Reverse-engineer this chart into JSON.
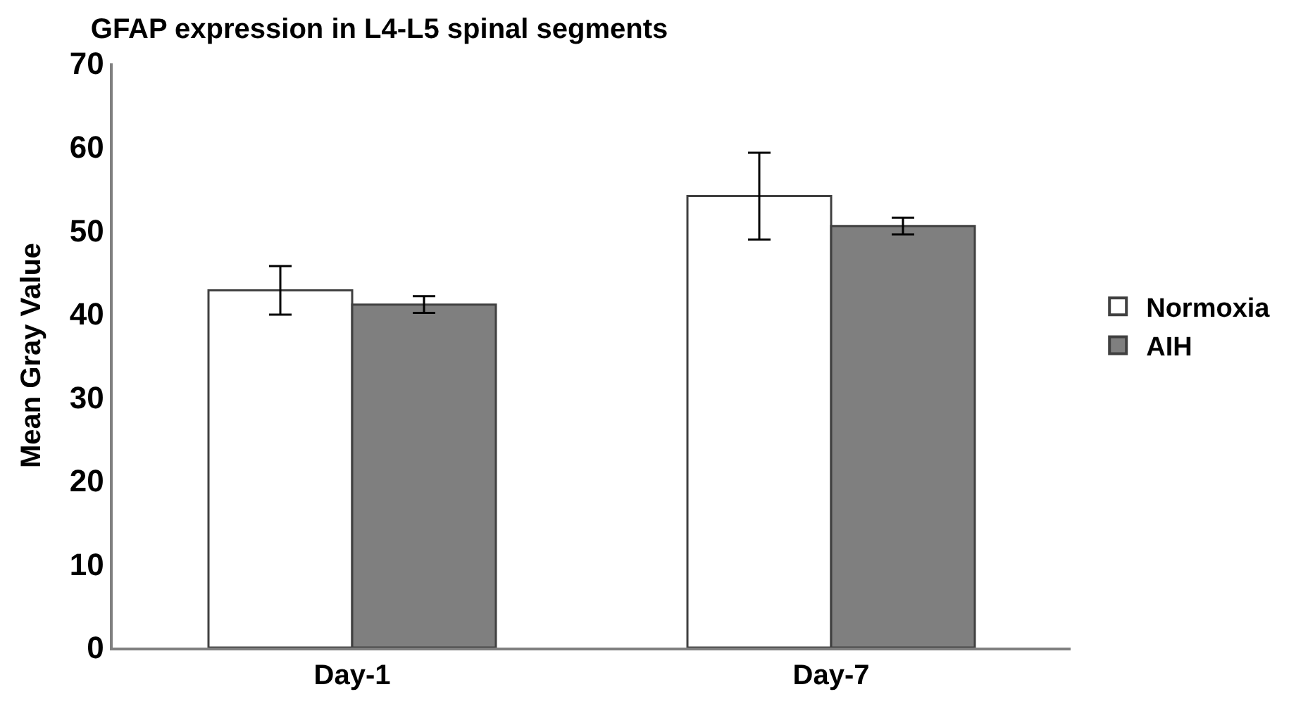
{
  "chart_data": {
    "type": "bar",
    "title": "GFAP expression in L4-L5 spinal segments",
    "ylabel": "Mean Gray Value",
    "categories": [
      "Day-1",
      "Day-7"
    ],
    "series": [
      {
        "name": "Normoxia",
        "color": "#ffffff",
        "values": [
          42.8,
          54.1
        ],
        "errors": [
          2.9,
          5.2
        ]
      },
      {
        "name": "AIH",
        "color": "#7f7f7f",
        "values": [
          41.1,
          50.5
        ],
        "errors": [
          1.0,
          1.0
        ]
      }
    ],
    "ylim": [
      0,
      70
    ],
    "yticks": [
      0,
      10,
      20,
      30,
      40,
      50,
      60,
      70
    ],
    "legend": "right"
  }
}
